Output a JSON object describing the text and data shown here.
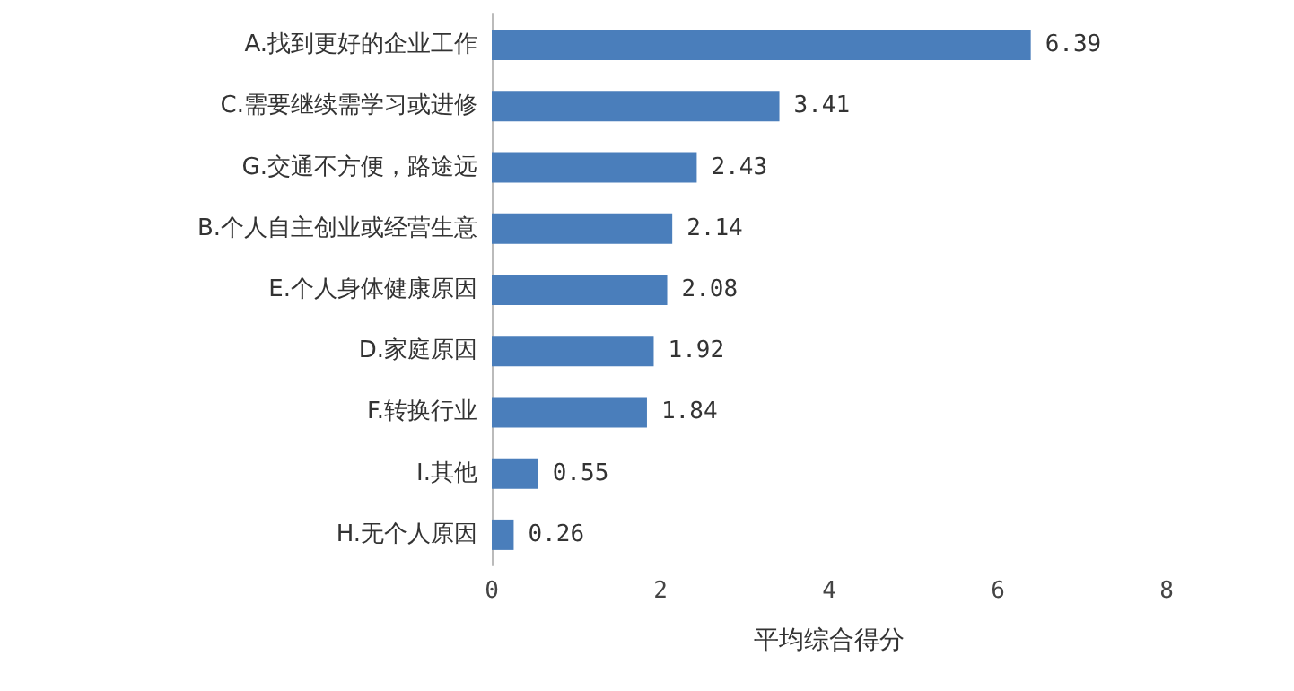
{
  "chart_data": {
    "type": "bar",
    "orientation": "horizontal",
    "categories": [
      "A.找到更好的企业工作",
      "C.需要继续需学习或进修",
      "G.交通不方便，路途远",
      "B.个人自主创业或经营生意",
      "E.个人身体健康原因",
      "D.家庭原因",
      "F.转换行业",
      "I.其他",
      "H.无个人原因"
    ],
    "values": [
      6.39,
      3.41,
      2.43,
      2.14,
      2.08,
      1.92,
      1.84,
      0.55,
      0.26
    ],
    "color": "#4a7ebb",
    "xlim": [
      0,
      8
    ],
    "xticks": [
      0,
      2,
      4,
      6,
      8
    ],
    "xlabel": "平均综合得分",
    "data_labels": true
  }
}
